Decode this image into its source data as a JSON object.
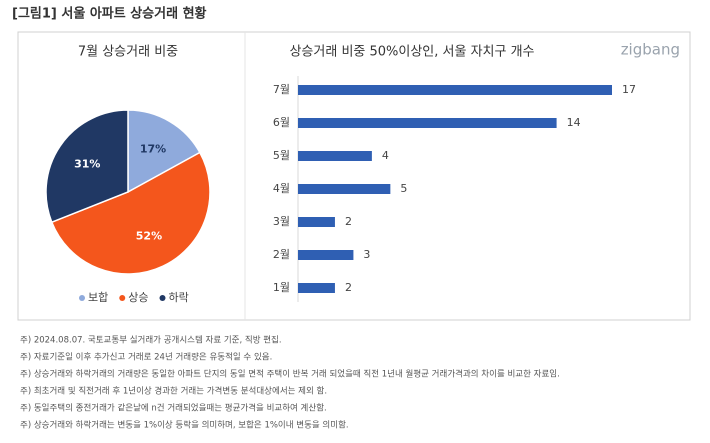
{
  "header": {
    "title": "[그림1] 서울 아파트 상승거래 현황"
  },
  "logo": "zigbang",
  "chart_data": [
    {
      "type": "pie",
      "title": "7월 상승거래 비중",
      "categories": [
        "보합",
        "상승",
        "하락"
      ],
      "values": [
        17,
        52,
        31
      ],
      "value_labels": [
        "17%",
        "52%",
        "31%"
      ],
      "colors": [
        "#8faadc",
        "#f4561c",
        "#203864"
      ],
      "legend": "bottom"
    },
    {
      "type": "hbar",
      "title": "상승거래 비중 50%이상인, 서울 자치구 개수",
      "categories": [
        "7월",
        "6월",
        "5월",
        "4월",
        "3월",
        "2월",
        "1월"
      ],
      "values": [
        17,
        14,
        4,
        5,
        2,
        3,
        2
      ],
      "color": "#2f5fb3"
    }
  ],
  "footnotes": [
    "주) 2024.08.07. 국토교통부 실거래가 공개시스템 자료 기준, 직방 편집.",
    "주) 자료기준일 이후 추가신고 거래로 24년 거래량은 유동적일 수 있음.",
    "주) 상승거래와 하락거래의 거래량은 동일한 아파트 단지의 동일 면적 주택이 반복 거래 되었을때 직전 1년내 월평균 거래가격과의 차이를 비교한 자료임.",
    "주) 최초거래 및 직전거래 후 1년이상 경과한 거래는 가격변동 분석대상에서는 제외 함.",
    "주) 동일주택의 종전거래가 같은날에 n건 거래되었을때는 평균가격을 비교하여 계산함.",
    "주) 상승거래와 하락거래는 변동을 1%이상 등락을 의미하며, 보합은 1%이내 변동을 의미함."
  ]
}
